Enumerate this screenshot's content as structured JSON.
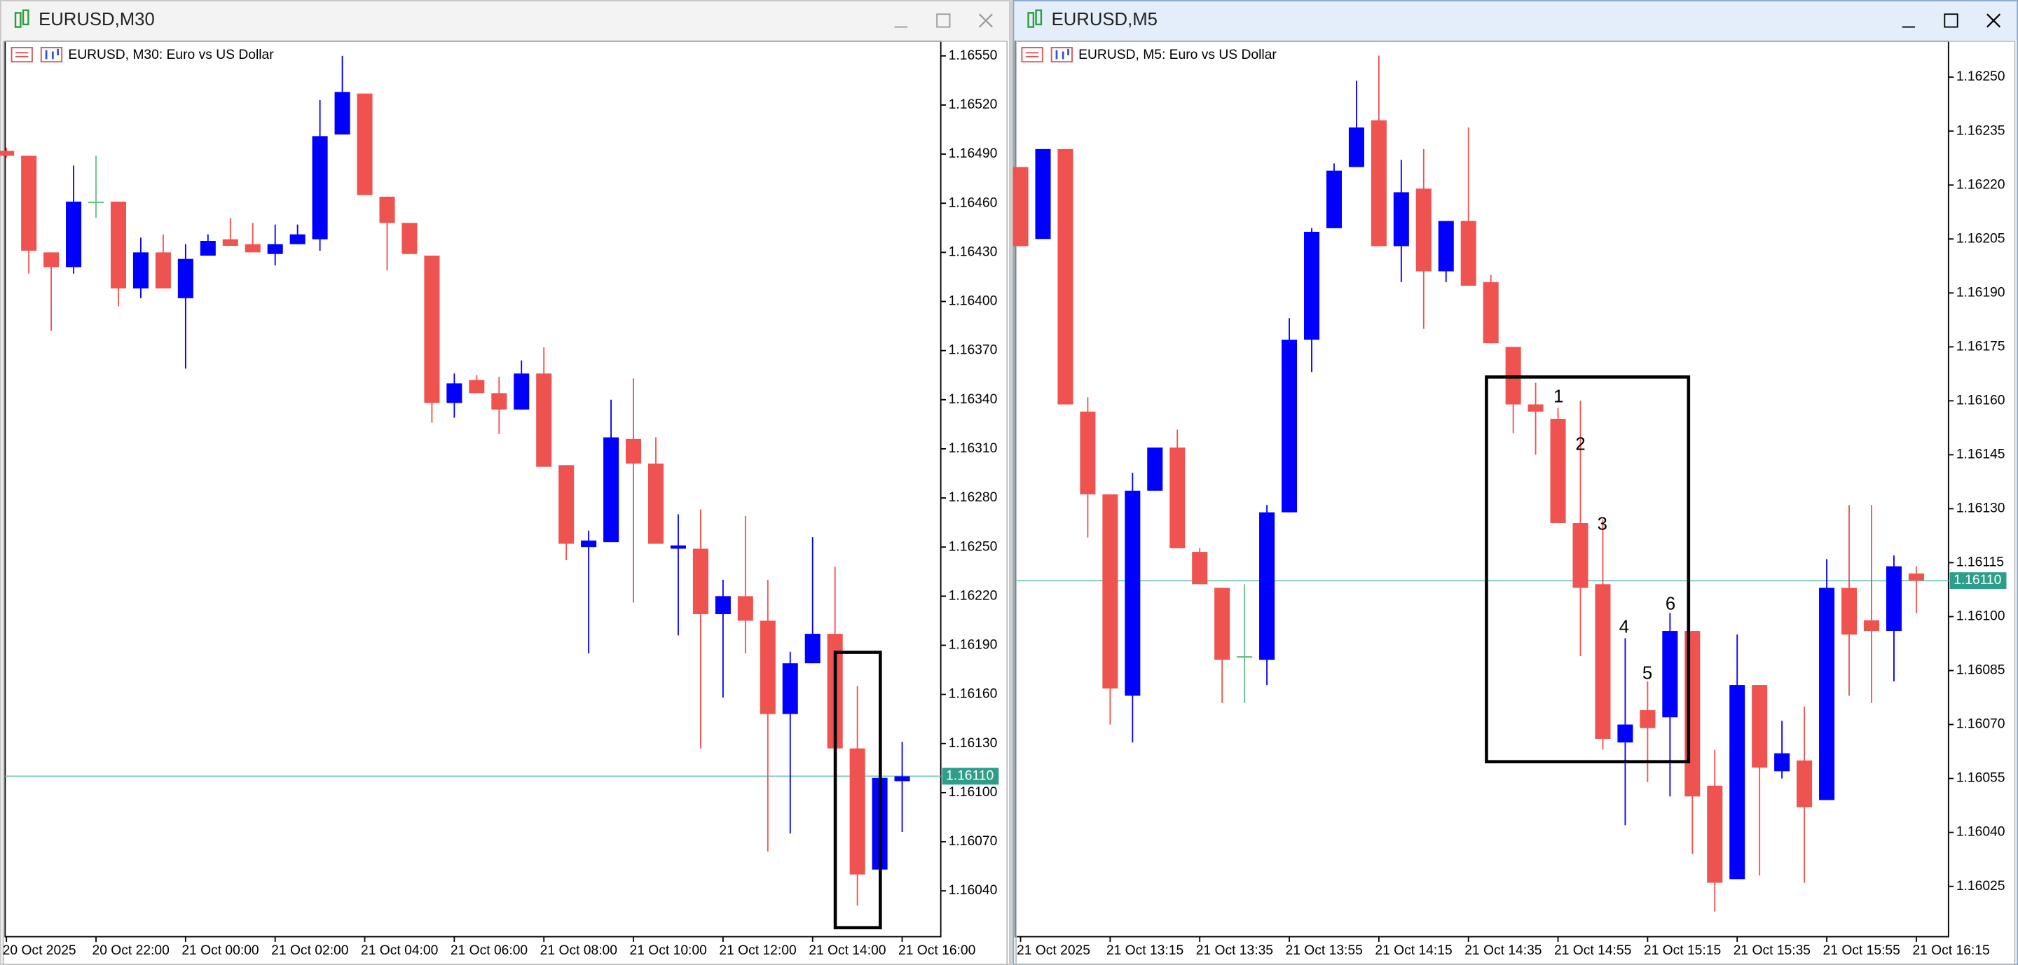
{
  "windows": [
    {
      "title": "EURUSD,M30"
    },
    {
      "title": "EURUSD,M5"
    }
  ],
  "chart_data": [
    {
      "type": "candlestick",
      "title": "EURUSD, M30:  Euro vs US Dollar",
      "categories": [
        "20 Oct 2025",
        null,
        null,
        null,
        "20 Oct 22:00",
        null,
        null,
        null,
        "21 Oct 00:00",
        null,
        null,
        null,
        "21 Oct 02:00",
        null,
        null,
        null,
        "21 Oct 04:00",
        null,
        null,
        null,
        "21 Oct 06:00",
        null,
        null,
        null,
        "21 Oct 08:00",
        null,
        null,
        null,
        "21 Oct 10:00",
        null,
        null,
        null,
        "21 Oct 12:00",
        null,
        null,
        null,
        "21 Oct 14:00",
        null,
        null,
        null,
        "21 Oct 16:00"
      ],
      "open": [
        1.16492,
        1.16489,
        1.1643,
        1.16421,
        1.16461,
        1.16461,
        1.16408,
        1.1643,
        1.16402,
        1.16428,
        1.16438,
        1.16435,
        1.16429,
        1.16435,
        1.16438,
        1.16502,
        1.16527,
        1.16464,
        1.16448,
        1.16428,
        1.16338,
        1.16352,
        1.16344,
        1.16334,
        1.16356,
        1.163,
        1.1625,
        1.16253,
        1.16316,
        1.16301,
        1.16249,
        1.16249,
        1.16209,
        1.1622,
        1.16205,
        1.16148,
        1.16179,
        1.16197,
        1.16127,
        1.16053,
        1.16107
      ],
      "high": [
        1.16494,
        1.16489,
        1.1643,
        1.16483,
        1.16489,
        1.16461,
        1.16439,
        1.16441,
        1.16435,
        1.16441,
        1.16451,
        1.16448,
        1.16447,
        1.16447,
        1.16523,
        1.1655,
        1.16527,
        1.16464,
        1.16448,
        1.16428,
        1.16356,
        1.16355,
        1.16354,
        1.16364,
        1.16372,
        1.163,
        1.1626,
        1.1634,
        1.16353,
        1.16317,
        1.1627,
        1.16273,
        1.1623,
        1.16269,
        1.1623,
        1.16186,
        1.16256,
        1.16238,
        1.16165,
        1.16112,
        1.16131
      ],
      "low": [
        1.16488,
        1.16417,
        1.16382,
        1.16417,
        1.16451,
        1.16397,
        1.16402,
        1.16408,
        1.16359,
        1.16428,
        1.16434,
        1.1643,
        1.16422,
        1.16435,
        1.16431,
        1.16502,
        1.16465,
        1.16419,
        1.16429,
        1.16326,
        1.16329,
        1.16344,
        1.16319,
        1.16334,
        1.16299,
        1.16242,
        1.16185,
        1.16253,
        1.16216,
        1.16252,
        1.16196,
        1.16127,
        1.16158,
        1.16185,
        1.16064,
        1.16075,
        1.16179,
        1.16127,
        1.16031,
        1.16053,
        1.16076
      ],
      "close": [
        1.16489,
        1.16431,
        1.16421,
        1.16461,
        1.16461,
        1.16408,
        1.1643,
        1.16408,
        1.16426,
        1.16437,
        1.16434,
        1.1643,
        1.16435,
        1.16441,
        1.16501,
        1.16528,
        1.16465,
        1.16448,
        1.16429,
        1.16338,
        1.1635,
        1.16344,
        1.16334,
        1.16356,
        1.16299,
        1.16252,
        1.16254,
        1.16317,
        1.16301,
        1.16252,
        1.16251,
        1.16209,
        1.1622,
        1.16205,
        1.16148,
        1.16179,
        1.16197,
        1.16127,
        1.1605,
        1.16109,
        1.1611
      ],
      "up_color": "#0000ff",
      "down_color": "#ef5350",
      "doji_color": "#66c28a",
      "ylim": [
        1.16012,
        1.16559
      ],
      "yticks": [
        {
          "value": 1.1655,
          "label": "1.16550"
        },
        {
          "value": 1.1652,
          "label": "1.16520"
        },
        {
          "value": 1.1649,
          "label": "1.16490"
        },
        {
          "value": 1.1646,
          "label": "1.16460"
        },
        {
          "value": 1.1643,
          "label": "1.16430"
        },
        {
          "value": 1.164,
          "label": "1.16400"
        },
        {
          "value": 1.1637,
          "label": "1.16370"
        },
        {
          "value": 1.1634,
          "label": "1.16340"
        },
        {
          "value": 1.1631,
          "label": "1.16310"
        },
        {
          "value": 1.1628,
          "label": "1.16280"
        },
        {
          "value": 1.1625,
          "label": "1.16250"
        },
        {
          "value": 1.1622,
          "label": "1.16220"
        },
        {
          "value": 1.1619,
          "label": "1.16190"
        },
        {
          "value": 1.1616,
          "label": "1.16160"
        },
        {
          "value": 1.1613,
          "label": "1.16130"
        },
        {
          "value": 1.161,
          "label": "1.16100"
        },
        {
          "value": 1.1607,
          "label": "1.16070"
        },
        {
          "value": 1.1604,
          "label": "1.16040"
        }
      ],
      "current_price": {
        "value": 1.1611,
        "label": "1.16110"
      },
      "annotations": []
    },
    {
      "type": "candlestick",
      "title": "EURUSD, M5:  Euro vs US Dollar",
      "categories": [
        "21 Oct 2025",
        null,
        null,
        null,
        "21 Oct 13:15",
        null,
        null,
        null,
        "21 Oct 13:35",
        null,
        null,
        null,
        "21 Oct 13:55",
        null,
        null,
        null,
        "21 Oct 14:15",
        null,
        null,
        null,
        "21 Oct 14:35",
        null,
        null,
        null,
        "21 Oct 14:55",
        null,
        null,
        null,
        "21 Oct 15:15",
        null,
        null,
        null,
        "21 Oct 15:35",
        null,
        null,
        null,
        "21 Oct 15:55",
        null,
        null,
        null,
        "21 Oct 16:15"
      ],
      "open": [
        1.16225,
        1.16205,
        1.1623,
        1.16157,
        1.16134,
        1.16078,
        1.16135,
        1.16147,
        1.16118,
        1.16108,
        1.16089,
        1.16088,
        1.16129,
        1.16177,
        1.16208,
        1.16225,
        1.16238,
        1.16203,
        1.16219,
        1.16196,
        1.1621,
        1.16193,
        1.16175,
        1.16159,
        1.16155,
        1.16126,
        1.16109,
        1.16065,
        1.16074,
        1.16072,
        1.16096,
        1.16053,
        1.16027,
        1.16081,
        1.16057,
        1.1606,
        1.16049,
        1.16108,
        1.16099,
        1.16096,
        1.16112
      ],
      "high": [
        1.16225,
        1.1623,
        1.1623,
        1.16161,
        1.16134,
        1.1614,
        1.16147,
        1.16152,
        1.16119,
        1.16108,
        1.16109,
        1.16131,
        1.16183,
        1.16208,
        1.16226,
        1.16249,
        1.16256,
        1.16227,
        1.1623,
        1.1621,
        1.16236,
        1.16195,
        1.16175,
        1.16165,
        1.16158,
        1.1616,
        1.16127,
        1.16094,
        1.16082,
        1.16101,
        1.16096,
        1.16063,
        1.16095,
        1.16081,
        1.16071,
        1.16075,
        1.16116,
        1.16131,
        1.16131,
        1.16117,
        1.16114
      ],
      "low": [
        1.16203,
        1.16205,
        1.16159,
        1.16122,
        1.1607,
        1.16065,
        1.16135,
        1.16119,
        1.16109,
        1.16076,
        1.16076,
        1.16081,
        1.16129,
        1.16168,
        1.16208,
        1.16225,
        1.16203,
        1.16193,
        1.1618,
        1.16193,
        1.16192,
        1.16176,
        1.16151,
        1.16145,
        1.16126,
        1.16089,
        1.16063,
        1.16042,
        1.16054,
        1.1605,
        1.16034,
        1.16018,
        1.16027,
        1.16028,
        1.16055,
        1.16026,
        1.16049,
        1.16078,
        1.16076,
        1.16082,
        1.16101
      ],
      "close": [
        1.16203,
        1.1623,
        1.16159,
        1.16134,
        1.1608,
        1.16135,
        1.16147,
        1.16119,
        1.16109,
        1.16088,
        1.16089,
        1.16129,
        1.16177,
        1.16207,
        1.16224,
        1.16236,
        1.16203,
        1.16218,
        1.16196,
        1.1621,
        1.16192,
        1.16176,
        1.16159,
        1.16157,
        1.16126,
        1.16108,
        1.16066,
        1.1607,
        1.16069,
        1.16096,
        1.1605,
        1.16026,
        1.16081,
        1.16058,
        1.16062,
        1.16047,
        1.16108,
        1.16095,
        1.16096,
        1.16114,
        1.1611
      ],
      "up_color": "#0000ff",
      "down_color": "#ef5350",
      "doji_color": "#66c28a",
      "ylim": [
        1.16011,
        1.1626
      ],
      "yticks": [
        {
          "value": 1.1625,
          "label": "1.16250"
        },
        1.16235,
        {
          "value": 1.1622,
          "label": "1.16220"
        },
        1.16205,
        {
          "value": 1.1619,
          "label": "1.16190"
        },
        1.16175,
        {
          "value": 1.1616,
          "label": "1.16160"
        },
        1.16145,
        {
          "value": 1.1613,
          "label": "1.16130"
        },
        1.16115,
        {
          "value": 1.161,
          "label": "1.16100"
        },
        1.16085,
        {
          "value": 1.1607,
          "label": "1.16070"
        },
        1.16055,
        {
          "value": 1.1604,
          "label": "1.16040"
        },
        1.16025
      ],
      "current_price": {
        "value": 1.1611,
        "label": "1.16110"
      },
      "annotations": [
        "1",
        "2",
        "3",
        "4",
        "5",
        "6"
      ]
    }
  ]
}
